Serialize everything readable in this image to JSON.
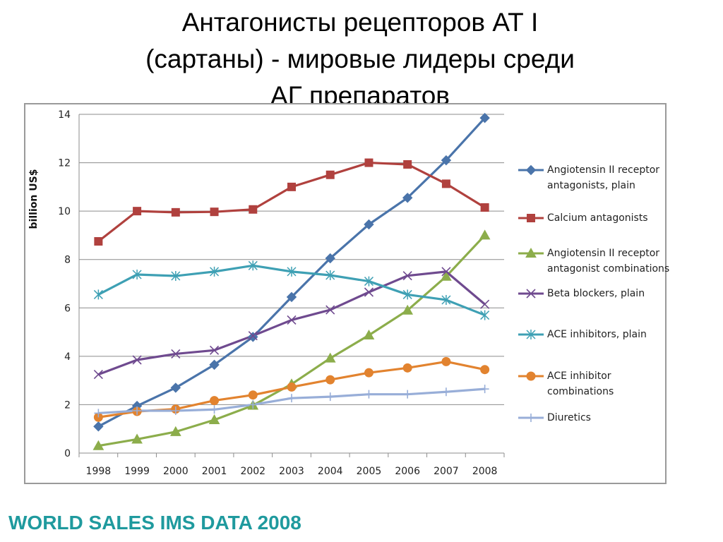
{
  "slide": {
    "title": "Антагонисты рецепторов АТ I\n(сартаны) - мировые лидеры среди\nАГ препаратов",
    "footer": "WORLD SALES IMS DATA 2008"
  },
  "chart_data": {
    "type": "line",
    "ylabel": "billion US$",
    "xlabel": "",
    "ylim": [
      0,
      14
    ],
    "yticks": [
      0,
      2,
      4,
      6,
      8,
      10,
      12,
      14
    ],
    "categories": [
      "1998",
      "1999",
      "2000",
      "2001",
      "2002",
      "2003",
      "2004",
      "2005",
      "2006",
      "2007",
      "2008"
    ],
    "grid": "horizontal",
    "legend_position": "right",
    "series": [
      {
        "name": "Angiotensin II receptor antagonists, plain",
        "color": "#4a74aa",
        "marker": "diamond",
        "values": [
          1.1,
          1.95,
          2.7,
          3.65,
          4.8,
          6.45,
          8.05,
          9.45,
          10.55,
          12.1,
          13.85
        ]
      },
      {
        "name": "Calcium antagonists",
        "color": "#b0413e",
        "marker": "square",
        "values": [
          8.75,
          10.0,
          9.95,
          9.97,
          10.07,
          11.0,
          11.5,
          12.0,
          11.93,
          11.13,
          10.15
        ]
      },
      {
        "name": "Angiotensin II receptor antagonist combinations",
        "color": "#8cad4b",
        "marker": "triangle",
        "values": [
          0.3,
          0.57,
          0.88,
          1.37,
          1.97,
          2.85,
          3.92,
          4.87,
          5.9,
          7.3,
          9.0
        ]
      },
      {
        "name": "Beta blockers, plain",
        "color": "#6f4a8f",
        "marker": "x",
        "values": [
          3.25,
          3.85,
          4.1,
          4.25,
          4.85,
          5.5,
          5.92,
          6.65,
          7.33,
          7.5,
          6.15
        ]
      },
      {
        "name": "ACE inhibitors, plain",
        "color": "#3ea0b4",
        "marker": "star",
        "values": [
          6.55,
          7.38,
          7.32,
          7.5,
          7.75,
          7.5,
          7.35,
          7.1,
          6.55,
          6.33,
          5.7
        ]
      },
      {
        "name": "ACE inhibitor combinations",
        "color": "#e2832f",
        "marker": "circle",
        "values": [
          1.48,
          1.72,
          1.82,
          2.17,
          2.4,
          2.73,
          3.03,
          3.32,
          3.52,
          3.78,
          3.45
        ]
      },
      {
        "name": "Diuretics",
        "color": "#98aed8",
        "marker": "plus",
        "values": [
          1.65,
          1.75,
          1.75,
          1.8,
          2.0,
          2.27,
          2.33,
          2.43,
          2.43,
          2.53,
          2.65
        ]
      }
    ]
  }
}
